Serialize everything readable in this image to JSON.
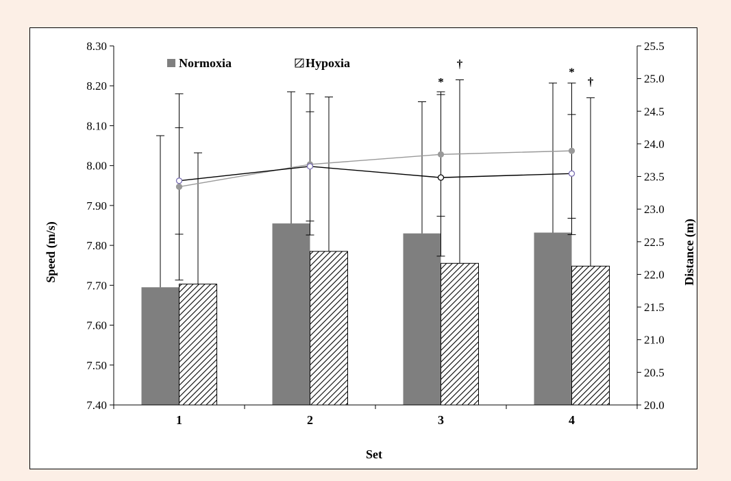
{
  "chart_data": {
    "type": "bar",
    "categories": [
      "1",
      "2",
      "3",
      "4"
    ],
    "xlabel": "Set",
    "ylabel": "Speed (m/s)",
    "y2label": "Distance (m)",
    "ylim": [
      7.4,
      8.3
    ],
    "yticks": [
      "7.40",
      "7.50",
      "7.60",
      "7.70",
      "7.80",
      "7.90",
      "8.00",
      "8.10",
      "8.20",
      "8.30"
    ],
    "y2lim": [
      20.0,
      25.5
    ],
    "y2ticks": [
      "20.0",
      "20.5",
      "21.0",
      "21.5",
      "22.0",
      "22.5",
      "23.0",
      "23.5",
      "24.0",
      "24.5",
      "25.0",
      "25.5"
    ],
    "legend_position": "top-left",
    "series": [
      {
        "name": "Normoxia",
        "kind": "bar",
        "axis": "left",
        "fill": "solid",
        "color": "#7f7f7f",
        "values": [
          7.695,
          7.855,
          7.83,
          7.832
        ],
        "error_upper": [
          8.075,
          8.185,
          8.16,
          8.207
        ]
      },
      {
        "name": "Hypoxia",
        "kind": "bar",
        "axis": "left",
        "fill": "hatched",
        "color": "#000000",
        "values": [
          7.703,
          7.785,
          7.755,
          7.748
        ],
        "error_upper": [
          8.032,
          8.172,
          8.215,
          8.17
        ]
      },
      {
        "kind": "line",
        "axis": "left",
        "color": "#999999",
        "marker": "filled",
        "values": [
          7.947,
          8.003,
          8.028,
          8.037
        ],
        "error_upper": [
          8.18,
          8.18,
          8.185,
          8.207
        ],
        "error_lower": [
          7.713,
          7.826,
          7.873,
          7.868
        ]
      },
      {
        "kind": "line",
        "axis": "left",
        "color": "#000000",
        "marker": "open",
        "values": [
          7.962,
          7.998,
          7.97,
          7.98
        ],
        "error_upper": [
          8.095,
          8.135,
          8.178,
          8.128
        ],
        "error_lower": [
          7.828,
          7.861,
          7.773,
          7.827
        ]
      }
    ],
    "annotations": [
      {
        "text": "*",
        "category": "3",
        "y": 8.2
      },
      {
        "text": "†",
        "category": "3",
        "y": 8.245
      },
      {
        "text": "*",
        "category": "4",
        "y": 8.225
      },
      {
        "text": "†",
        "category": "4",
        "y": 8.2
      }
    ]
  }
}
